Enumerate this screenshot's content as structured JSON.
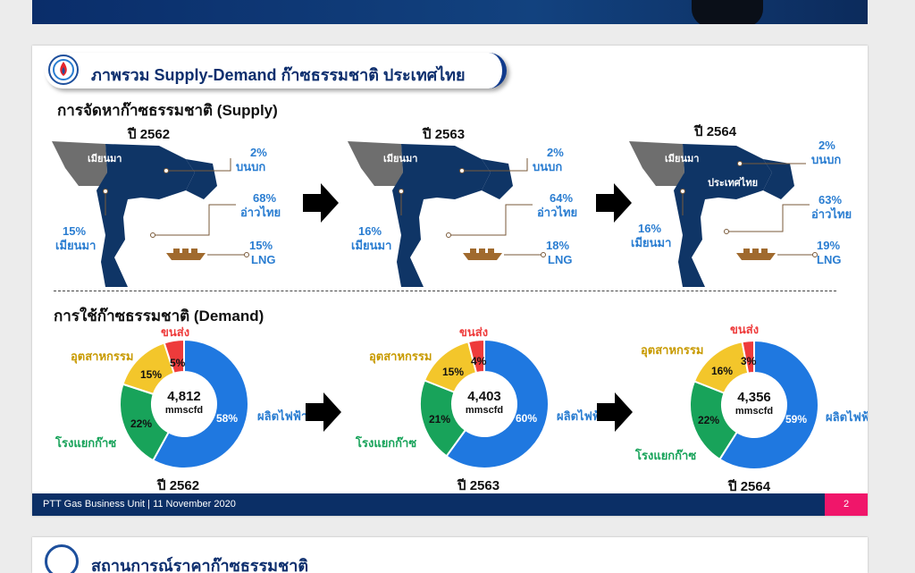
{
  "slide": {
    "title": "ภาพรวม Supply-Demand ก๊าซธรรมชาติ ประเทศไทย",
    "supply_title": "การจัดหาก๊าซธรรมชาติ (Supply)",
    "demand_title": "การใช้ก๊าซธรรมชาติ (Demand)",
    "map_labels": {
      "myanmar": "เมียนมา",
      "thailand": "ประเทศไทย"
    },
    "supply": [
      {
        "year": "ปี 2562",
        "onshore_pct": "2%",
        "onshore_label": "บนบก",
        "gulf_pct": "68%",
        "gulf_label": "อ่าวไทย",
        "myanmar_pct": "15%",
        "myanmar_label": "เมียนมา",
        "lng_pct": "15%",
        "lng_label": "LNG"
      },
      {
        "year": "ปี 2563",
        "onshore_pct": "2%",
        "onshore_label": "บนบก",
        "gulf_pct": "64%",
        "gulf_label": "อ่าวไทย",
        "myanmar_pct": "16%",
        "myanmar_label": "เมียนมา",
        "lng_pct": "18%",
        "lng_label": "LNG"
      },
      {
        "year": "ปี 2564",
        "onshore_pct": "2%",
        "onshore_label": "บนบก",
        "gulf_pct": "63%",
        "gulf_label": "อ่าวไทย",
        "myanmar_pct": "16%",
        "myanmar_label": "เมียนมา",
        "lng_pct": "19%",
        "lng_label": "LNG"
      }
    ],
    "demand": [
      {
        "year": "ปี 2562",
        "total": "4,812",
        "unit": "mmscfd",
        "segments": [
          {
            "name": "ผลิตไฟฟ้า",
            "value": 58,
            "label": "58%",
            "color": "#1f78e0"
          },
          {
            "name": "โรงแยกก๊าซ",
            "value": 22,
            "label": "22%",
            "color": "#18a35a"
          },
          {
            "name": "อุตสาหกรรม",
            "value": 15,
            "label": "15%",
            "color": "#f3c62b"
          },
          {
            "name": "ขนส่ง",
            "value": 5,
            "label": "5%",
            "color": "#ee3b3b"
          }
        ]
      },
      {
        "year": "ปี 2563",
        "total": "4,403",
        "unit": "mmscfd",
        "segments": [
          {
            "name": "ผลิตไฟฟ้า",
            "value": 60,
            "label": "60%",
            "color": "#1f78e0"
          },
          {
            "name": "โรงแยกก๊าซ",
            "value": 21,
            "label": "21%",
            "color": "#18a35a"
          },
          {
            "name": "อุตสาหกรรม",
            "value": 15,
            "label": "15%",
            "color": "#f3c62b"
          },
          {
            "name": "ขนส่ง",
            "value": 4,
            "label": "4%",
            "color": "#ee3b3b"
          }
        ]
      },
      {
        "year": "ปี 2564",
        "total": "4,356",
        "unit": "mmscfd",
        "segments": [
          {
            "name": "ผลิตไฟฟ้า",
            "value": 59,
            "label": "59%",
            "color": "#1f78e0"
          },
          {
            "name": "โรงแยกก๊าซ",
            "value": 22,
            "label": "22%",
            "color": "#18a35a"
          },
          {
            "name": "อุตสาหกรรม",
            "value": 16,
            "label": "16%",
            "color": "#f3c62b"
          },
          {
            "name": "ขนส่ง",
            "value": 3,
            "label": "3%",
            "color": "#ee3b3b"
          }
        ]
      }
    ],
    "footer": "PTT Gas Business Unit  |  11 November 2020",
    "page_number": "2"
  },
  "next_slide": {
    "title": "สถานการณ์ราคาก๊าซธรรมชาติ"
  },
  "colors": {
    "navy": "#0e2f6e",
    "label_blue": "#2a7dd1",
    "map_dark": "#0f3566",
    "map_grey": "#6e6e6e",
    "page_tag": "#f0166a"
  }
}
